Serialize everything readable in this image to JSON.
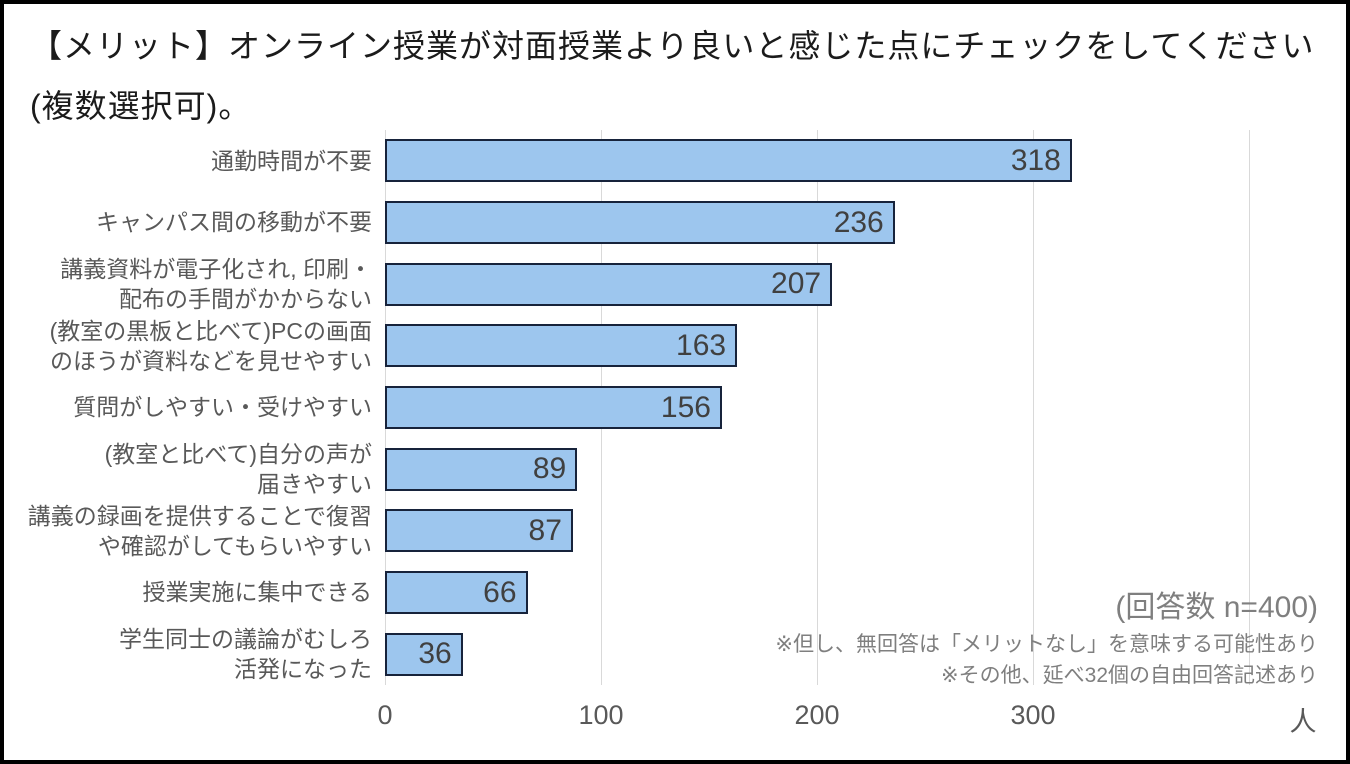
{
  "title": {
    "line1": "【メリット】オンライン授業が対面授業より良いと感じた点にチェックをしてください",
    "line2": "(複数選択可)。"
  },
  "axis": {
    "tick_labels": [
      "0",
      "100",
      "200",
      "300"
    ],
    "tick_values": [
      0,
      100,
      200,
      300
    ],
    "unit_label": "人",
    "max": 400
  },
  "annotations": {
    "n_label": "(回答数 n=400)",
    "note1": "※但し、無回答は「メリットなし」を意味する可能性あり",
    "note2": "※その他、延べ32個の自由回答記述あり"
  },
  "colors": {
    "bar_fill": "#9dc6ee",
    "bar_border": "#17233b",
    "grid": "#d9d9d9",
    "label": "#595959",
    "value": "#404040",
    "note": "#7f7f7f",
    "title": "#1b1b1b"
  },
  "chart_data": {
    "type": "bar",
    "orientation": "horizontal",
    "title": "【メリット】オンライン授業が対面授業より良いと感じた点にチェックをしてください(複数選択可)。",
    "categories": [
      "通勤時間が不要",
      "キャンパス間の移動が不要",
      "講義資料が電子化され, 印刷・配布の手間がかからない",
      "(教室の黒板と比べて)PCの画面のほうが資料などを見せやすい",
      "質問がしやすい・受けやすい",
      "(教室と比べて)自分の声が届きやすい",
      "講義の録画を提供することで復習や確認がしてもらいやすい",
      "授業実施に集中できる",
      "学生同士の議論がむしろ活発になった"
    ],
    "category_lines": [
      [
        "通勤時間が不要"
      ],
      [
        "キャンパス間の移動が不要"
      ],
      [
        "講義資料が電子化され, 印刷・",
        "配布の手間がかからない"
      ],
      [
        "(教室の黒板と比べて)PCの画面",
        "のほうが資料などを見せやすい"
      ],
      [
        "質問がしやすい・受けやすい"
      ],
      [
        "(教室と比べて)自分の声が",
        "届きやすい"
      ],
      [
        "講義の録画を提供することで復習",
        "や確認がしてもらいやすい"
      ],
      [
        "授業実施に集中できる"
      ],
      [
        "学生同士の議論がむしろ",
        "活発になった"
      ]
    ],
    "values": [
      318,
      236,
      207,
      163,
      156,
      89,
      87,
      66,
      36
    ],
    "xlabel": "人",
    "ylabel": "",
    "xlim": [
      0,
      400
    ],
    "gridline_values": [
      0,
      100,
      200,
      300,
      400
    ],
    "grid": true,
    "legend": false,
    "value_labels": "inside-end",
    "annotations": [
      "(回答数 n=400)",
      "※但し、無回答は「メリットなし」を意味する可能性あり",
      "※その他、延べ32個の自由回答記述あり"
    ]
  }
}
